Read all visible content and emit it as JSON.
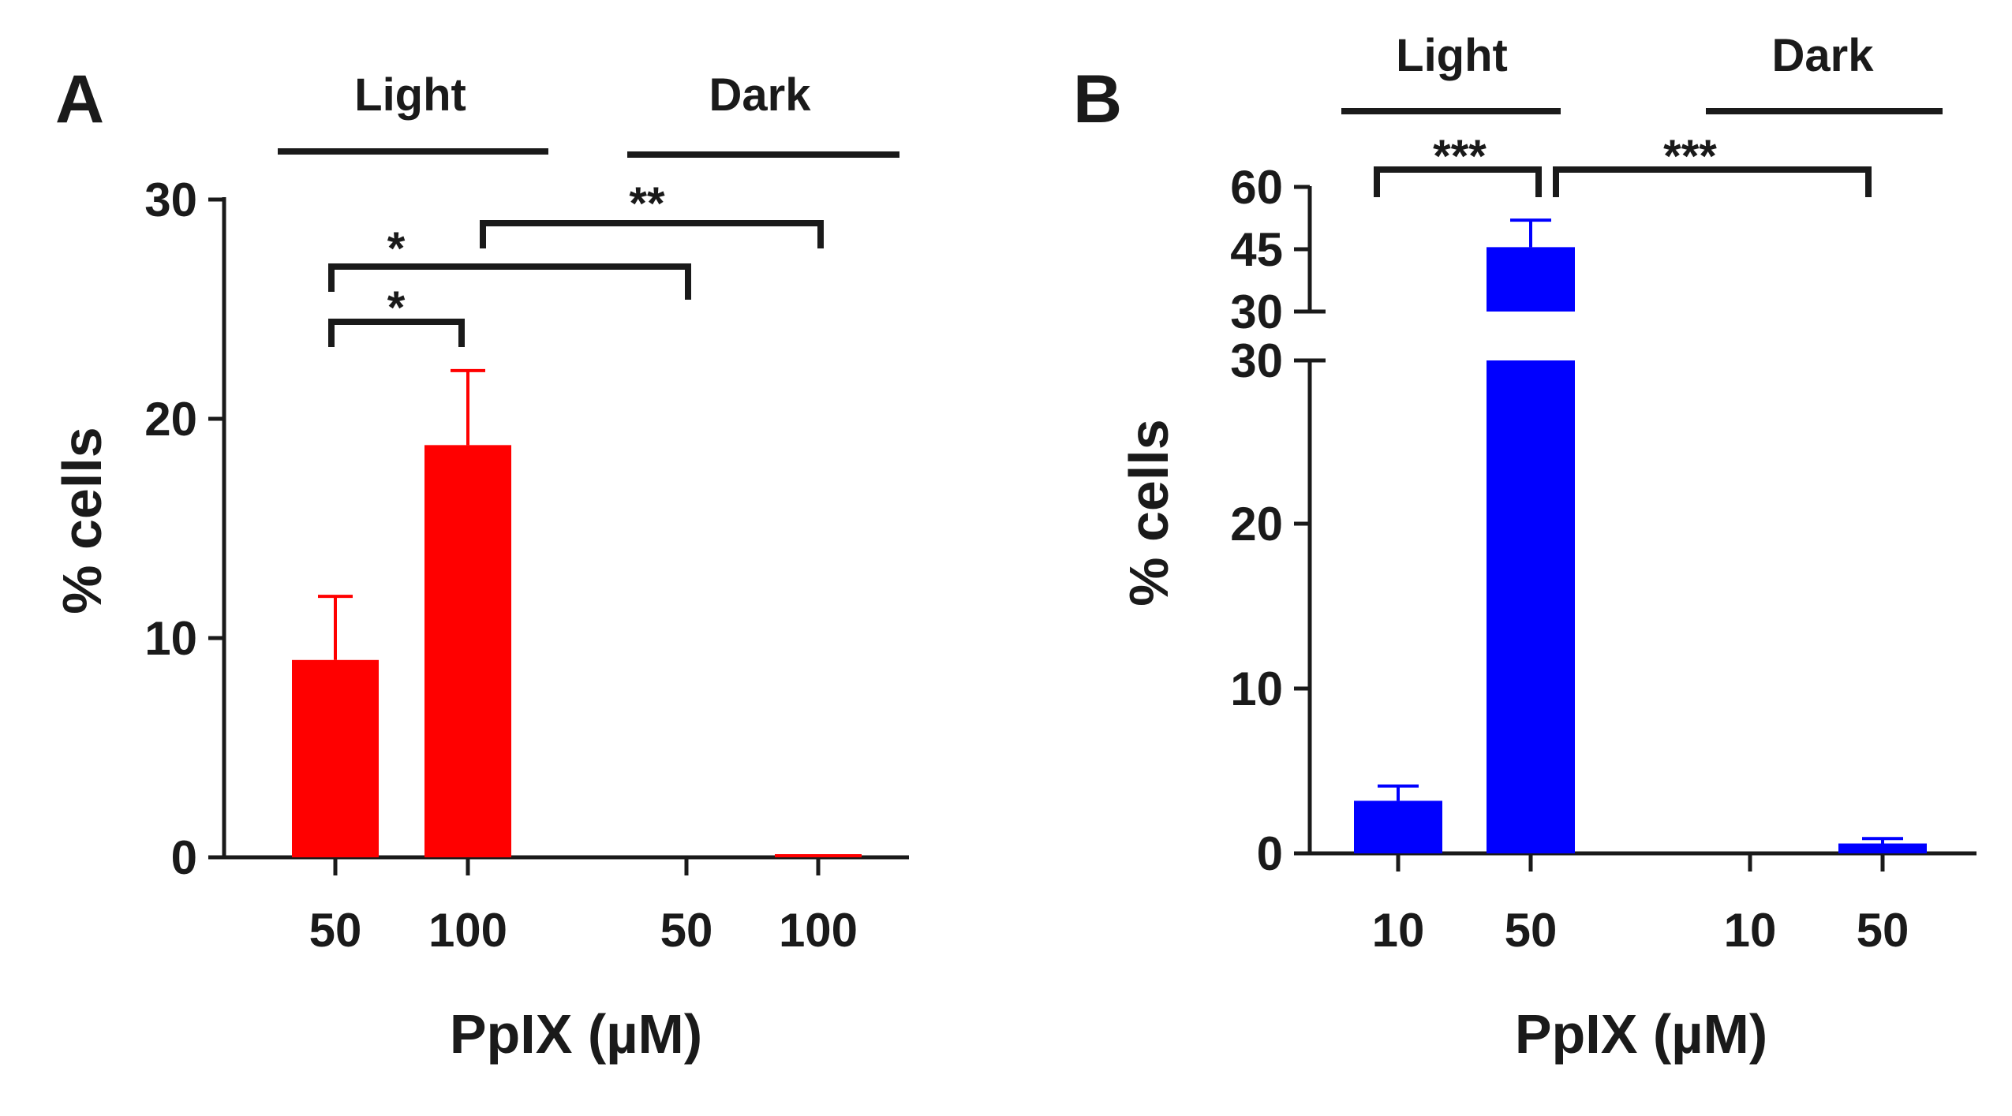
{
  "charts": {
    "A": {
      "panel_label": "A",
      "color": "#ff0000",
      "ylabel": "% cells",
      "xlabel": "PpIX (µM)",
      "group_labels": [
        "Light",
        "Dark"
      ],
      "y_ticks": [
        "0",
        "10",
        "20",
        "30"
      ],
      "x_labels": [
        "50",
        "100",
        "50",
        "100"
      ],
      "significance": [
        {
          "label": "*",
          "from": 0,
          "to": 1
        },
        {
          "label": "*",
          "from": 0,
          "to": 2
        },
        {
          "label": "**",
          "from": 1,
          "to": 3
        }
      ]
    },
    "B": {
      "panel_label": "B",
      "color": "#0000ff",
      "ylabel": "% cells",
      "xlabel": "PpIX (µM)",
      "group_labels": [
        "Light",
        "Dark"
      ],
      "y_ticks_lower": [
        "0",
        "10",
        "20",
        "30"
      ],
      "y_ticks_upper": [
        "30",
        "45",
        "60"
      ],
      "x_labels": [
        "10",
        "50",
        "10",
        "50"
      ],
      "significance": [
        {
          "label": "***",
          "from": 0,
          "to": 1
        },
        {
          "label": "***",
          "from": 1,
          "to": 3
        }
      ]
    }
  },
  "chart_data": [
    {
      "type": "bar",
      "title": "A",
      "groups": [
        "Light",
        "Light",
        "Dark",
        "Dark"
      ],
      "categories": [
        "50",
        "100",
        "50",
        "100"
      ],
      "values": [
        9.0,
        18.8,
        0.0,
        0.1
      ],
      "errors": [
        2.9,
        3.4,
        0.0,
        0.0
      ],
      "xlabel": "PpIX (µM)",
      "ylabel": "% cells",
      "ylim": [
        0,
        30
      ]
    },
    {
      "type": "bar",
      "title": "B",
      "groups": [
        "Light",
        "Light",
        "Dark",
        "Dark"
      ],
      "categories": [
        "10",
        "50",
        "10",
        "50"
      ],
      "values": [
        3.2,
        45.5,
        0.0,
        0.6
      ],
      "errors": [
        0.9,
        6.5,
        0.0,
        0.3
      ],
      "xlabel": "PpIX (µM)",
      "ylabel": "% cells",
      "ylim": [
        0,
        60
      ],
      "axis_break": [
        30,
        30
      ]
    }
  ]
}
